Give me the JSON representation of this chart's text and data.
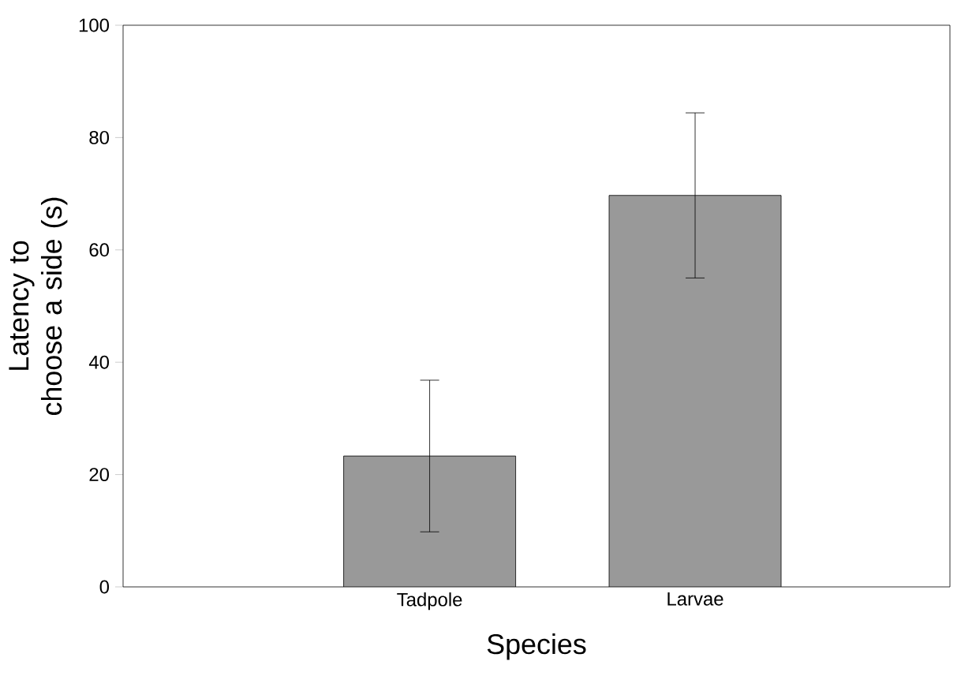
{
  "chart_data": {
    "type": "bar",
    "xlabel": "Species",
    "ylabel": "Latency to choose a side (s)",
    "categories": [
      "Tadpole",
      "Larvae"
    ],
    "values": [
      23.3,
      69.7
    ],
    "errors": [
      13.5,
      14.7
    ],
    "color": "#999999",
    "ylim": [
      0,
      100
    ],
    "yticks": [
      0,
      20,
      40,
      60,
      80,
      100
    ],
    "grid": false
  }
}
